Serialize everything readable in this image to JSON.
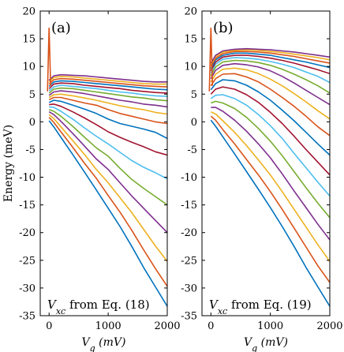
{
  "chart_data": [
    {
      "type": "line",
      "panel_label": "(a)",
      "annotation": {
        "symbol": "V",
        "subscript": "xc",
        "text": " from Eq. (18)"
      },
      "xlabel": {
        "symbol": "V",
        "subscript": "g",
        "unit": "(mV)"
      },
      "ylabel": "Energy (meV)",
      "xlim": [
        -150,
        2000
      ],
      "ylim": [
        -35,
        20
      ],
      "xticks": [
        0,
        1000,
        2000
      ],
      "yticks": [
        20,
        15,
        10,
        5,
        0,
        -5,
        -10,
        -15,
        -20,
        -25,
        -30,
        -35
      ],
      "grid": false,
      "x": [
        0,
        80,
        200,
        400,
        600,
        800,
        1000,
        1200,
        1400,
        1600,
        1800,
        2000
      ],
      "spike": {
        "x": 0,
        "peak": 17,
        "base": 5.5
      },
      "series": [
        {
          "values": [
            0.2,
            -0.9,
            -2.8,
            -5.9,
            -9.1,
            -12.3,
            -15.6,
            -18.9,
            -22.5,
            -26.3,
            -29.8,
            -33.3
          ]
        },
        {
          "values": [
            0.8,
            -0.1,
            -1.8,
            -4.6,
            -7.5,
            -10.2,
            -13.3,
            -16.3,
            -19.6,
            -23.1,
            -26.5,
            -29.7
          ]
        },
        {
          "values": [
            1.3,
            0.6,
            -0.9,
            -3.4,
            -5.9,
            -8.6,
            -11.0,
            -13.7,
            -16.4,
            -19.4,
            -22.4,
            -25.2
          ]
        },
        {
          "values": [
            1.8,
            1.3,
            0.1,
            -2.1,
            -4.4,
            -6.7,
            -8.6,
            -11.0,
            -13.4,
            -15.6,
            -17.8,
            -20.0
          ]
        },
        {
          "values": [
            2.2,
            1.9,
            1.0,
            -0.8,
            -2.8,
            -4.7,
            -6.2,
            -8.4,
            -10.4,
            -12.0,
            -13.5,
            -15.0
          ]
        },
        {
          "values": [
            2.7,
            2.6,
            1.9,
            0.5,
            -1.1,
            -2.6,
            -4.0,
            -5.5,
            -7.0,
            -8.2,
            -9.2,
            -10.3
          ]
        },
        {
          "values": [
            3.1,
            3.2,
            2.8,
            1.8,
            0.7,
            -0.5,
            -1.8,
            -2.8,
            -3.7,
            -4.5,
            -5.4,
            -6.0
          ]
        },
        {
          "values": [
            3.5,
            3.9,
            3.7,
            3.0,
            2.3,
            1.5,
            0.5,
            -0.3,
            -0.8,
            -1.3,
            -1.9,
            -3.0
          ]
        },
        {
          "values": [
            4.0,
            4.4,
            4.4,
            3.9,
            3.4,
            3.0,
            2.2,
            1.5,
            1.0,
            0.5,
            0.0,
            -0.3
          ]
        },
        {
          "values": [
            4.4,
            4.9,
            5.0,
            4.7,
            4.3,
            3.9,
            3.4,
            2.9,
            2.5,
            2.2,
            1.7,
            1.4
          ]
        },
        {
          "values": [
            4.8,
            5.4,
            5.6,
            5.4,
            5.1,
            4.7,
            4.3,
            3.9,
            3.6,
            3.2,
            3.0,
            2.7
          ]
        },
        {
          "values": [
            5.2,
            5.9,
            6.1,
            6.0,
            5.7,
            5.4,
            5.1,
            4.8,
            4.5,
            4.3,
            4.0,
            3.8
          ]
        },
        {
          "values": [
            5.6,
            6.3,
            6.6,
            6.4,
            6.2,
            6.0,
            5.7,
            5.4,
            5.2,
            4.9,
            4.7,
            4.6
          ]
        },
        {
          "values": [
            6.0,
            6.8,
            7.0,
            6.9,
            6.6,
            6.4,
            6.2,
            6.0,
            5.7,
            5.5,
            5.3,
            5.2
          ]
        },
        {
          "values": [
            6.4,
            7.2,
            7.4,
            7.3,
            7.1,
            6.9,
            6.7,
            6.5,
            6.3,
            6.1,
            5.9,
            5.8
          ]
        },
        {
          "values": [
            6.8,
            7.6,
            7.8,
            7.7,
            7.5,
            7.3,
            7.1,
            6.9,
            6.7,
            6.5,
            6.4,
            6.3
          ]
        },
        {
          "values": [
            7.2,
            8.0,
            8.2,
            8.1,
            7.9,
            7.7,
            7.5,
            7.3,
            7.1,
            6.9,
            6.8,
            6.8
          ]
        },
        {
          "values": [
            7.5,
            8.3,
            8.5,
            8.4,
            8.3,
            8.1,
            7.9,
            7.7,
            7.5,
            7.3,
            7.2,
            7.2
          ]
        }
      ]
    },
    {
      "type": "line",
      "panel_label": "(b)",
      "annotation": {
        "symbol": "V",
        "subscript": "xc",
        "text": " from Eq. (19)"
      },
      "xlabel": {
        "symbol": "V",
        "subscript": "g",
        "unit": "(mV)"
      },
      "ylabel": "",
      "xlim": [
        -150,
        2000
      ],
      "ylim": [
        -35,
        20
      ],
      "xticks": [
        0,
        1000,
        2000
      ],
      "yticks": [
        20,
        15,
        10,
        5,
        0,
        -5,
        -10,
        -15,
        -20,
        -25,
        -30,
        -35
      ],
      "grid": false,
      "x": [
        0,
        80,
        200,
        400,
        600,
        800,
        1000,
        1200,
        1400,
        1600,
        1800,
        2000
      ],
      "spike": {
        "x": 0,
        "peak": 17,
        "base": 5.5
      },
      "series": [
        {
          "values": [
            0.3,
            -0.8,
            -2.7,
            -5.8,
            -9.0,
            -12.2,
            -15.5,
            -18.9,
            -22.5,
            -26.3,
            -29.8,
            -33.3
          ]
        },
        {
          "values": [
            1.0,
            0.3,
            -1.4,
            -4.0,
            -6.8,
            -9.6,
            -12.6,
            -15.8,
            -19.2,
            -22.6,
            -26.0,
            -29.0
          ]
        },
        {
          "values": [
            1.8,
            1.4,
            0.2,
            -1.9,
            -4.3,
            -6.9,
            -9.6,
            -12.6,
            -15.8,
            -19.0,
            -22.2,
            -25.2
          ]
        },
        {
          "values": [
            2.6,
            2.6,
            1.9,
            0.3,
            -1.7,
            -4.0,
            -6.5,
            -9.4,
            -12.5,
            -15.5,
            -18.5,
            -21.3
          ]
        },
        {
          "values": [
            3.4,
            3.7,
            3.4,
            2.4,
            0.8,
            -1.2,
            -3.5,
            -6.1,
            -9.0,
            -11.9,
            -14.7,
            -17.3
          ]
        },
        {
          "values": [
            4.2,
            4.8,
            4.9,
            4.2,
            3.0,
            1.3,
            -0.7,
            -3.0,
            -5.7,
            -8.3,
            -10.9,
            -13.4
          ]
        },
        {
          "values": [
            5.0,
            5.9,
            6.3,
            5.9,
            4.9,
            3.5,
            1.7,
            -0.3,
            -2.6,
            -5.0,
            -7.3,
            -9.6
          ]
        },
        {
          "values": [
            5.8,
            6.9,
            7.6,
            7.4,
            6.6,
            5.4,
            3.9,
            2.1,
            0.2,
            -1.9,
            -4.0,
            -6.0
          ]
        },
        {
          "values": [
            6.5,
            7.8,
            8.6,
            8.7,
            8.1,
            7.2,
            5.9,
            4.4,
            2.8,
            1.0,
            -0.9,
            -2.5
          ]
        },
        {
          "values": [
            7.2,
            8.6,
            9.5,
            9.7,
            9.4,
            8.7,
            7.7,
            6.5,
            5.1,
            3.6,
            2.0,
            0.5
          ]
        },
        {
          "values": [
            7.8,
            9.3,
            10.2,
            10.5,
            10.3,
            9.9,
            9.2,
            8.2,
            7.0,
            5.7,
            4.4,
            3.1
          ]
        },
        {
          "values": [
            8.3,
            9.9,
            10.8,
            11.1,
            11.0,
            10.7,
            10.2,
            9.5,
            8.6,
            7.6,
            6.5,
            5.2
          ]
        },
        {
          "values": [
            8.8,
            10.4,
            11.3,
            11.6,
            11.5,
            11.3,
            10.9,
            10.4,
            9.8,
            9.0,
            8.2,
            7.1
          ]
        },
        {
          "values": [
            9.2,
            10.8,
            11.7,
            12.0,
            12.0,
            11.8,
            11.5,
            11.1,
            10.6,
            10.0,
            9.4,
            8.7
          ]
        },
        {
          "values": [
            9.6,
            11.2,
            12.0,
            12.4,
            12.4,
            12.2,
            12.0,
            11.6,
            11.2,
            10.8,
            10.3,
            9.8
          ]
        },
        {
          "values": [
            10.0,
            11.5,
            12.3,
            12.7,
            12.7,
            12.6,
            12.4,
            12.1,
            11.8,
            11.4,
            11.0,
            10.6
          ]
        },
        {
          "values": [
            10.3,
            11.8,
            12.6,
            12.9,
            13.0,
            12.9,
            12.7,
            12.5,
            12.2,
            11.9,
            11.6,
            11.2
          ]
        },
        {
          "values": [
            10.6,
            12.0,
            12.8,
            13.1,
            13.2,
            13.1,
            13.0,
            12.8,
            12.6,
            12.3,
            12.0,
            11.7
          ]
        }
      ]
    }
  ],
  "series_colors": [
    "#0072BD",
    "#D95319",
    "#EDB120",
    "#7E2F8E",
    "#77AC30",
    "#4DBEEE",
    "#A2142F"
  ]
}
